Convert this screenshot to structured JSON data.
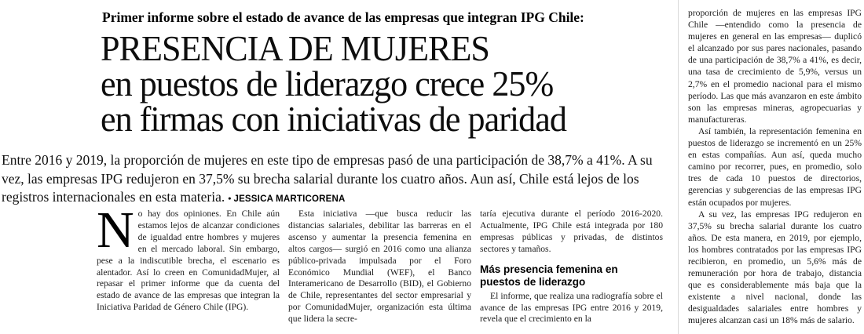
{
  "article": {
    "kicker": "Primer informe sobre el estado de avance de las empresas que integran IPG Chile:",
    "headline_line1": "PRESENCIA DE MUJERES",
    "headline_line2": "en puestos de liderazgo crece 25%",
    "headline_line3": "en firmas con iniciativas de paridad",
    "deck": "Entre 2016 y 2019, la proporción de mujeres en este tipo de empresas pasó de una participación de 38,7% a 41%. A su vez, las empresas IPG redujeron en 37,5% su brecha salarial durante los cuatro años. Aun así, Chile está lejos de los registros internacionales en esta materia.",
    "byline_bullet": "•",
    "byline": "JESSICA MARTICORENA",
    "dropcap": "N",
    "col1_p1": "o hay dos opiniones. En Chile aún estamos lejos de alcanzar condiciones de igualdad entre hombres y mujeres en el mercado laboral. Sin embargo, pese a la indiscutible brecha, el escenario es alentador. Así lo creen en ComunidadMujer, al repasar el primer informe que da cuenta del estado de avance de las empresas que integran la Iniciativa Paridad de Género Chile (IPG).",
    "col2_p1": "Esta iniciativa —que busca reducir las distancias salariales, debilitar las barreras en el ascenso y aumentar la presencia femenina en altos cargos— surgió en 2016 como una alianza público-privada impulsada por el Foro Económico Mundial (WEF), el Banco Interamericano de Desarrollo (BID), el Gobierno de Chile, representantes del sector empresarial y por ComunidadMujer, organización esta última que lidera la secre-",
    "col3_p1": "taría ejecutiva durante el período 2016-2020. Actualmente, IPG Chile está integrada por 180 empresas públicas y privadas, de distintos sectores y tamaños.",
    "col3_subhead": "Más presencia femenina en puestos de liderazgo",
    "col3_p2": "El informe, que realiza una radiografía sobre el avance de las empresas IPG entre 2016 y 2019, revela que el crecimiento en la",
    "right_p1": "proporción de mujeres en las empresas IPG Chile —entendido como la presencia de mujeres en general en las empresas— duplicó el alcanzado por sus pares nacionales, pasando de una participación de 38,7% a 41%, es decir, una tasa de crecimiento de 5,9%, versus un 2,7% en el promedio nacional para el mismo período. Las que más avanzaron en este ámbito son las empresas mineras, agropecuarias y manufactureras.",
    "right_p2": "Así también, la representación femenina en puestos de liderazgo se incrementó en un 25% en estas compañías. Aun así, queda mucho camino por recorrer, pues, en promedio, solo tres de cada 10 puestos de directorios, gerencias y subgerencias de las empresas IPG están ocupados por mujeres.",
    "right_p3": "A su vez, las empresas IPG redujeron en 37,5% su brecha salarial durante los cuatro años. De esta manera, en 2019, por ejemplo, los hombres contratados por las empresas IPG recibieron, en promedio, un 5,6% más de remuneración por hora de trabajo, distancia que es considerablemente más baja que la existente a nivel nacional, donde las desigualdades salariales entre hombres y mujeres alcanzan casi un 18% más de salario."
  },
  "colors": {
    "text": "#1a1a1a",
    "headline": "#0d0d0d",
    "rule": "#d9d9d9",
    "background": "#ffffff"
  }
}
